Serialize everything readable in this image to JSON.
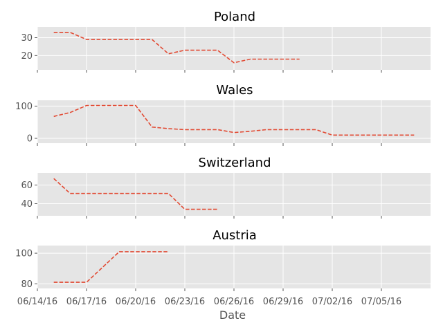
{
  "chart_data": {
    "type": "line",
    "xlabel": "Date",
    "x_ticks": [
      "06/14/16",
      "06/17/16",
      "06/20/16",
      "06/23/16",
      "06/26/16",
      "06/29/16",
      "07/02/16",
      "07/05/16"
    ],
    "x_range": [
      "06/14/16",
      "07/08/16"
    ],
    "grid": true,
    "line_color": "#E24A33",
    "line_style": "dashed",
    "panel_background": "#E5E5E5",
    "grid_color": "#FFFFFF",
    "panels": [
      {
        "title": "Poland",
        "ylim": [
          12,
          36
        ],
        "y_ticks": [
          20,
          30
        ],
        "points": [
          [
            "06/15/16",
            33
          ],
          [
            "06/16/16",
            33
          ],
          [
            "06/17/16",
            29
          ],
          [
            "06/18/16",
            29
          ],
          [
            "06/19/16",
            29
          ],
          [
            "06/20/16",
            29
          ],
          [
            "06/21/16",
            29
          ],
          [
            "06/22/16",
            21
          ],
          [
            "06/23/16",
            23
          ],
          [
            "06/24/16",
            23
          ],
          [
            "06/25/16",
            23
          ],
          [
            "06/26/16",
            16
          ],
          [
            "06/27/16",
            18
          ],
          [
            "06/28/16",
            18
          ],
          [
            "06/29/16",
            18
          ],
          [
            "06/30/16",
            18
          ]
        ]
      },
      {
        "title": "Wales",
        "ylim": [
          -15,
          118
        ],
        "y_ticks": [
          0,
          100
        ],
        "points": [
          [
            "06/15/16",
            68
          ],
          [
            "06/16/16",
            80
          ],
          [
            "06/17/16",
            102
          ],
          [
            "06/18/16",
            102
          ],
          [
            "06/19/16",
            102
          ],
          [
            "06/20/16",
            102
          ],
          [
            "06/21/16",
            35
          ],
          [
            "06/22/16",
            30
          ],
          [
            "06/23/16",
            27
          ],
          [
            "06/24/16",
            27
          ],
          [
            "06/25/16",
            27
          ],
          [
            "06/26/16",
            18
          ],
          [
            "06/27/16",
            22
          ],
          [
            "06/28/16",
            27
          ],
          [
            "06/29/16",
            27
          ],
          [
            "06/30/16",
            27
          ],
          [
            "07/01/16",
            27
          ],
          [
            "07/02/16",
            10
          ],
          [
            "07/03/16",
            10
          ],
          [
            "07/04/16",
            10
          ],
          [
            "07/05/16",
            10
          ],
          [
            "07/06/16",
            10
          ],
          [
            "07/07/16",
            10
          ]
        ]
      },
      {
        "title": "Switzerland",
        "ylim": [
          27,
          73
        ],
        "y_ticks": [
          40,
          60
        ],
        "points": [
          [
            "06/15/16",
            67
          ],
          [
            "06/16/16",
            51
          ],
          [
            "06/17/16",
            51
          ],
          [
            "06/18/16",
            51
          ],
          [
            "06/19/16",
            51
          ],
          [
            "06/20/16",
            51
          ],
          [
            "06/21/16",
            51
          ],
          [
            "06/22/16",
            51
          ],
          [
            "06/23/16",
            34
          ],
          [
            "06/24/16",
            34
          ],
          [
            "06/25/16",
            34
          ]
        ]
      },
      {
        "title": "Austria",
        "ylim": [
          77,
          105
        ],
        "y_ticks": [
          80,
          100
        ],
        "points": [
          [
            "06/15/16",
            81
          ],
          [
            "06/16/16",
            81
          ],
          [
            "06/17/16",
            81
          ],
          [
            "06/19/16",
            101
          ],
          [
            "06/20/16",
            101
          ],
          [
            "06/21/16",
            101
          ],
          [
            "06/22/16",
            101
          ]
        ]
      }
    ]
  }
}
